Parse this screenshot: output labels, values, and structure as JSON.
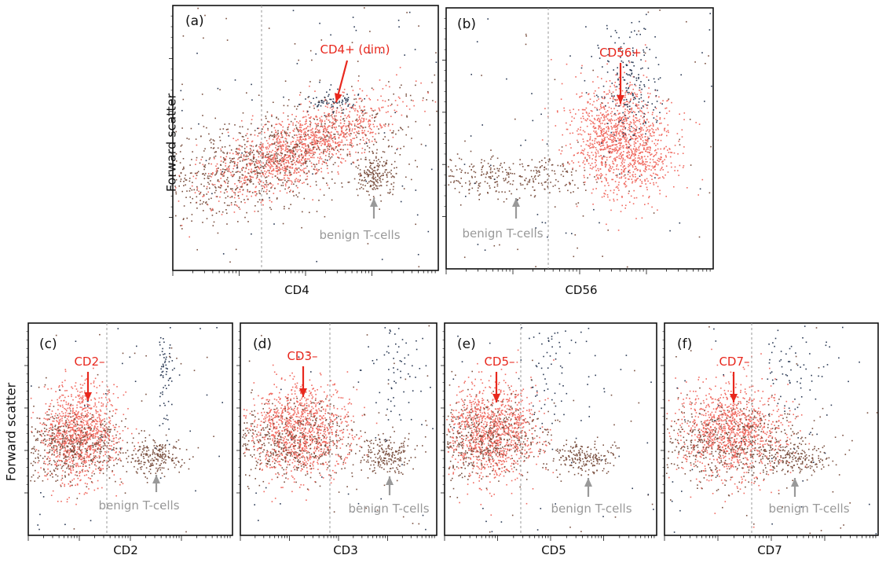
{
  "figure": {
    "ylabel": "Forward scatter",
    "colors": {
      "dense": "#f06a60",
      "sparse": "#7a5040",
      "sparse_alt": "#2b3a55",
      "dim": "#2b3a55",
      "red_label": "#e8281e",
      "gray_label": "#999999",
      "frame": "#111111",
      "gate": "#999999"
    }
  },
  "chart_data": [
    {
      "panel": "(a)",
      "type": "scatter",
      "xlabel": "CD4",
      "ylabel": "Forward scatter",
      "xscale": "log",
      "gate": "vertical dashed line",
      "annotations": [
        {
          "text": "CD4+ (dim)",
          "color": "red",
          "arrow": "down-left"
        },
        {
          "text": "benign T-cells",
          "color": "gray",
          "arrow": "up"
        }
      ]
    },
    {
      "panel": "(b)",
      "type": "scatter",
      "xlabel": "CD56",
      "ylabel": "",
      "xscale": "log",
      "gate": "vertical dashed line",
      "annotations": [
        {
          "text": "CD56+",
          "color": "red",
          "arrow": "down"
        },
        {
          "text": "benign T-cells",
          "color": "gray",
          "arrow": "up"
        }
      ]
    },
    {
      "panel": "(c)",
      "type": "scatter",
      "xlabel": "CD2",
      "ylabel": "Forward scatter",
      "xscale": "log",
      "gate": "vertical dashed line",
      "annotations": [
        {
          "text": "CD2–",
          "color": "red",
          "arrow": "down"
        },
        {
          "text": "benign T-cells",
          "color": "gray",
          "arrow": "up"
        }
      ]
    },
    {
      "panel": "(d)",
      "type": "scatter",
      "xlabel": "CD3",
      "ylabel": "",
      "xscale": "log",
      "gate": "vertical dashed line",
      "annotations": [
        {
          "text": "CD3–",
          "color": "red",
          "arrow": "down"
        },
        {
          "text": "benign T-cells",
          "color": "gray",
          "arrow": "up"
        }
      ]
    },
    {
      "panel": "(e)",
      "type": "scatter",
      "xlabel": "CD5",
      "ylabel": "",
      "xscale": "log",
      "gate": "vertical dashed line",
      "annotations": [
        {
          "text": "CD5–",
          "color": "red",
          "arrow": "down"
        },
        {
          "text": "benign T-cells",
          "color": "gray",
          "arrow": "up"
        }
      ]
    },
    {
      "panel": "(f)",
      "type": "scatter",
      "xlabel": "CD7",
      "ylabel": "",
      "xscale": "log",
      "gate": "vertical dashed line",
      "annotations": [
        {
          "text": "CD7–",
          "color": "red",
          "arrow": "down"
        },
        {
          "text": "benign T-cells",
          "color": "gray",
          "arrow": "up"
        }
      ]
    }
  ]
}
